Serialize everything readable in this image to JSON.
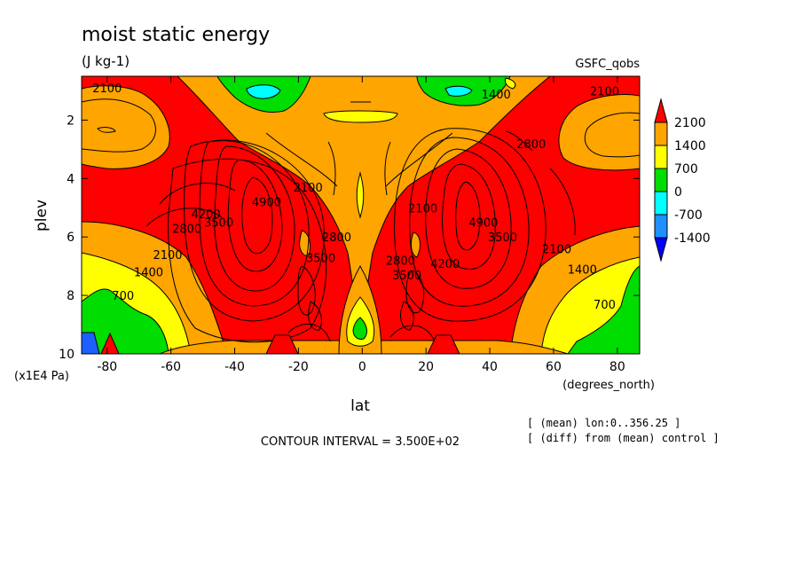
{
  "chart_data": {
    "type": "contour",
    "title": "moist static energy",
    "units": "(J kg-1)",
    "model_label": "GSFC_qobs",
    "xlabel": "lat",
    "xunits": "(degrees_north)",
    "ylabel": "plev",
    "yunits": "(x1E4 Pa)",
    "xlim": [
      -88,
      87
    ],
    "ylim": [
      10,
      0.5
    ],
    "xticks": [
      -80,
      -60,
      -40,
      -20,
      0,
      20,
      40,
      60,
      80
    ],
    "yticks": [
      2,
      4,
      6,
      8,
      10
    ],
    "contour_interval_text": "CONTOUR INTERVAL = 3.500E+02",
    "notes": [
      "[ (mean) lon:0..356.25 ]",
      "[ (diff) from (mean) control ]"
    ],
    "colorbar": {
      "labels": [
        "2100",
        "1400",
        "700",
        "0",
        "-700",
        "-1400"
      ],
      "colors": [
        "#ff0000",
        "#ffa500",
        "#ffff00",
        "#00dd00",
        "#00ffff",
        "#1e90ff",
        "#0000ff"
      ]
    },
    "contour_labels": [
      {
        "text": "2100",
        "lat": -80,
        "plev": 0.9
      },
      {
        "text": "2100",
        "lat": 76,
        "plev": 1.0
      },
      {
        "text": "1400",
        "lat": 42,
        "plev": 1.1
      },
      {
        "text": "2800",
        "lat": 53,
        "plev": 2.8
      },
      {
        "text": "4900",
        "lat": -30,
        "plev": 4.8
      },
      {
        "text": "2100",
        "lat": -17,
        "plev": 4.3
      },
      {
        "text": "4200",
        "lat": -49,
        "plev": 5.2
      },
      {
        "text": "3500",
        "lat": -45,
        "plev": 5.5
      },
      {
        "text": "2800",
        "lat": -55,
        "plev": 5.7
      },
      {
        "text": "2100",
        "lat": -61,
        "plev": 6.6
      },
      {
        "text": "1400",
        "lat": -67,
        "plev": 7.2
      },
      {
        "text": "700",
        "lat": -75,
        "plev": 8.0
      },
      {
        "text": "2100",
        "lat": 19,
        "plev": 5.0
      },
      {
        "text": "4900",
        "lat": 38,
        "plev": 5.5
      },
      {
        "text": "3500",
        "lat": 44,
        "plev": 6.0
      },
      {
        "text": "4200",
        "lat": 26,
        "plev": 6.9
      },
      {
        "text": "2100",
        "lat": 61,
        "plev": 6.4
      },
      {
        "text": "1400",
        "lat": 69,
        "plev": 7.1
      },
      {
        "text": "700",
        "lat": 76,
        "plev": 8.3
      },
      {
        "text": "2800",
        "lat": 12,
        "plev": 6.8
      },
      {
        "text": "3500",
        "lat": 14,
        "plev": 7.3
      },
      {
        "text": "3500",
        "lat": -13,
        "plev": 6.7
      },
      {
        "text": "2800",
        "lat": -8,
        "plev": 6.0
      }
    ]
  }
}
